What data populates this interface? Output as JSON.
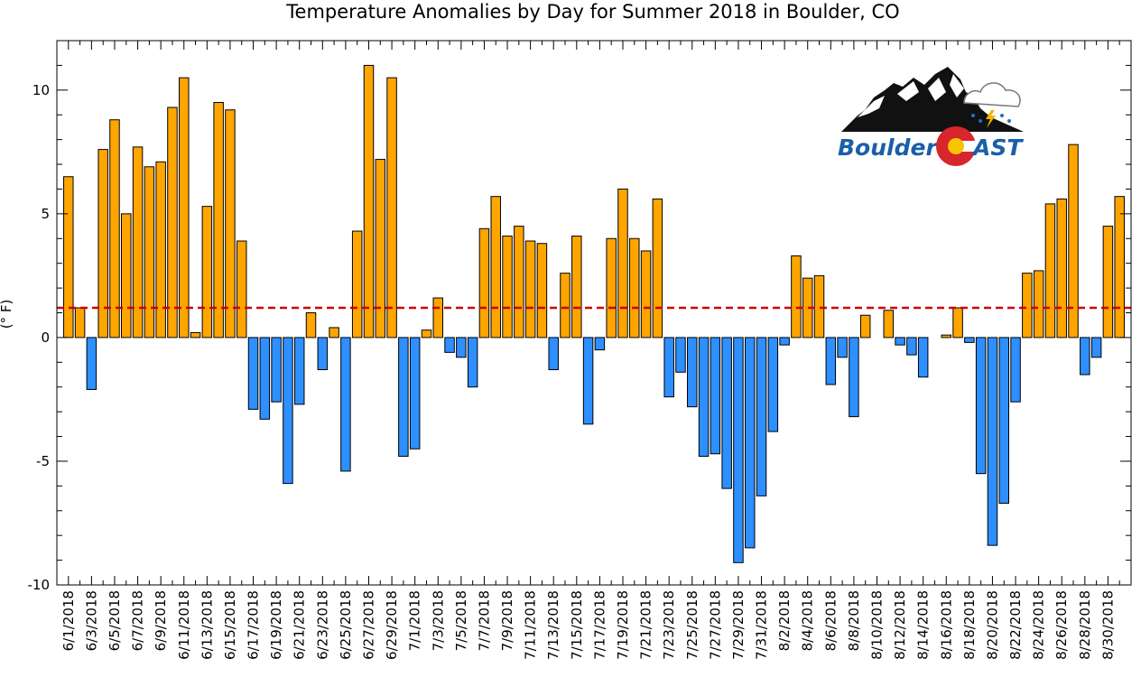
{
  "chart_data": {
    "type": "bar",
    "title": "Temperature Anomalies by Day for Summer 2018 in Boulder, CO",
    "xlabel": "",
    "ylabel": "(° F)",
    "ylim": [
      -10,
      12
    ],
    "yticks": [
      -10,
      -5,
      0,
      5,
      10
    ],
    "grid": false,
    "legend": "none",
    "reference_line": 1.2,
    "colors": {
      "positive": "#FFA500",
      "negative": "#2E8FFF",
      "reference": "#CC0000"
    },
    "categories": [
      "6/1/2018",
      "6/2/2018",
      "6/3/2018",
      "6/4/2018",
      "6/5/2018",
      "6/6/2018",
      "6/7/2018",
      "6/8/2018",
      "6/9/2018",
      "6/10/2018",
      "6/11/2018",
      "6/12/2018",
      "6/13/2018",
      "6/14/2018",
      "6/15/2018",
      "6/16/2018",
      "6/17/2018",
      "6/18/2018",
      "6/19/2018",
      "6/20/2018",
      "6/21/2018",
      "6/22/2018",
      "6/23/2018",
      "6/24/2018",
      "6/25/2018",
      "6/26/2018",
      "6/27/2018",
      "6/28/2018",
      "6/29/2018",
      "6/30/2018",
      "7/1/2018",
      "7/2/2018",
      "7/3/2018",
      "7/4/2018",
      "7/5/2018",
      "7/6/2018",
      "7/7/2018",
      "7/8/2018",
      "7/9/2018",
      "7/10/2018",
      "7/11/2018",
      "7/12/2018",
      "7/13/2018",
      "7/14/2018",
      "7/15/2018",
      "7/16/2018",
      "7/17/2018",
      "7/18/2018",
      "7/19/2018",
      "7/20/2018",
      "7/21/2018",
      "7/22/2018",
      "7/23/2018",
      "7/24/2018",
      "7/25/2018",
      "7/26/2018",
      "7/27/2018",
      "7/28/2018",
      "7/29/2018",
      "7/30/2018",
      "7/31/2018",
      "8/1/2018",
      "8/2/2018",
      "8/3/2018",
      "8/4/2018",
      "8/5/2018",
      "8/6/2018",
      "8/7/2018",
      "8/8/2018",
      "8/9/2018",
      "8/10/2018",
      "8/11/2018",
      "8/12/2018",
      "8/13/2018",
      "8/14/2018",
      "8/15/2018",
      "8/16/2018",
      "8/17/2018",
      "8/18/2018",
      "8/19/2018",
      "8/20/2018",
      "8/21/2018",
      "8/22/2018",
      "8/23/2018",
      "8/24/2018",
      "8/25/2018",
      "8/26/2018",
      "8/27/2018",
      "8/28/2018",
      "8/29/2018",
      "8/30/2018",
      "8/31/2018"
    ],
    "tick_labels": [
      "6/1/2018",
      "6/3/2018",
      "6/5/2018",
      "6/7/2018",
      "6/9/2018",
      "6/11/2018",
      "6/13/2018",
      "6/15/2018",
      "6/17/2018",
      "6/19/2018",
      "6/21/2018",
      "6/23/2018",
      "6/25/2018",
      "6/27/2018",
      "6/29/2018",
      "7/1/2018",
      "7/3/2018",
      "7/5/2018",
      "7/7/2018",
      "7/9/2018",
      "7/11/2018",
      "7/13/2018",
      "7/15/2018",
      "7/17/2018",
      "7/19/2018",
      "7/21/2018",
      "7/23/2018",
      "7/25/2018",
      "7/27/2018",
      "7/29/2018",
      "7/31/2018",
      "8/2/2018",
      "8/4/2018",
      "8/6/2018",
      "8/8/2018",
      "8/10/2018",
      "8/12/2018",
      "8/14/2018",
      "8/16/2018",
      "8/18/2018",
      "8/20/2018",
      "8/22/2018",
      "8/24/2018",
      "8/26/2018",
      "8/28/2018",
      "8/30/2018"
    ],
    "values": [
      6.5,
      1.2,
      -2.1,
      7.6,
      8.8,
      5.0,
      7.7,
      6.9,
      7.1,
      9.3,
      10.5,
      0.2,
      5.3,
      9.5,
      9.2,
      3.9,
      -2.9,
      -3.3,
      -2.6,
      -5.9,
      -2.7,
      1.0,
      -1.3,
      0.4,
      -5.4,
      4.3,
      11.0,
      7.2,
      10.5,
      -4.8,
      -4.5,
      0.3,
      1.6,
      -0.6,
      -0.8,
      -2.0,
      4.4,
      5.7,
      4.1,
      4.5,
      3.9,
      3.8,
      -1.3,
      2.6,
      4.1,
      -3.5,
      -0.5,
      4.0,
      6.0,
      4.0,
      3.5,
      5.6,
      -2.4,
      -1.4,
      -2.8,
      -4.8,
      -4.7,
      -6.1,
      -9.1,
      -8.5,
      -6.4,
      -3.8,
      -0.3,
      3.3,
      2.4,
      2.5,
      -1.9,
      -0.8,
      -3.2,
      0.9,
      0.0,
      1.1,
      -0.3,
      -0.7,
      -1.6,
      0.0,
      0.1,
      1.2,
      -0.2,
      -5.5,
      -8.4,
      -6.7,
      -2.6,
      2.6,
      2.7,
      5.4,
      5.6,
      7.8,
      -1.5,
      -0.8,
      4.5,
      5.7
    ]
  },
  "logo": {
    "word1": "Boulder",
    "word2": "AST"
  }
}
